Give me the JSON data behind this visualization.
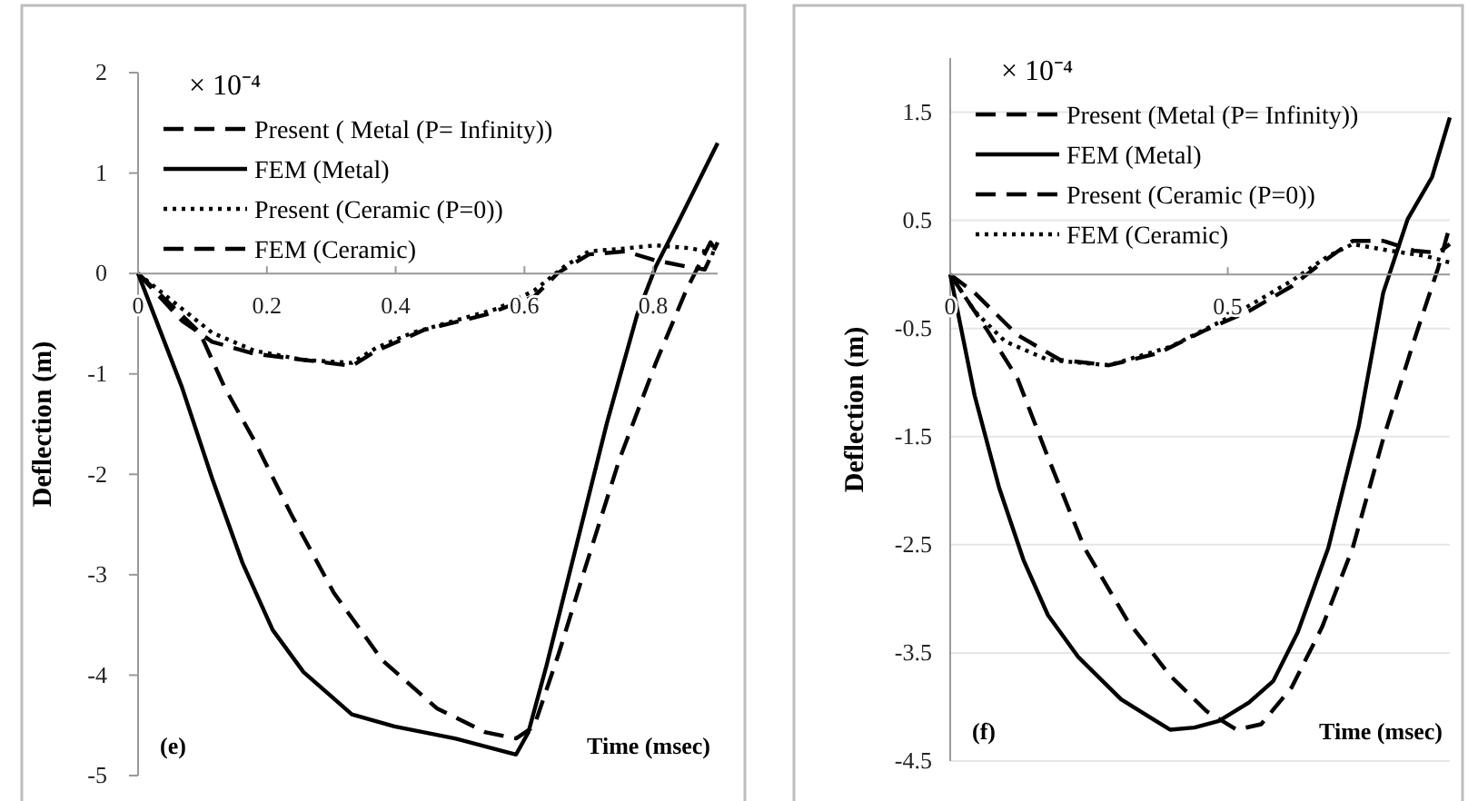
{
  "chart_data": [
    {
      "type": "line",
      "xlabel": "Time (msec)",
      "ylabel": "Deflection (m)",
      "annotations": [
        "× 10⁻⁴",
        "(e)"
      ],
      "xlim": [
        0,
        0.9
      ],
      "xticks": [
        0,
        0.2,
        0.4,
        0.6,
        0.8
      ],
      "ylim": [
        -5,
        2
      ],
      "yticks": [
        -5,
        -4,
        -3,
        -2,
        -1,
        0,
        1,
        2
      ],
      "grid": false,
      "legend": "top",
      "marker": "none",
      "series": [
        {
          "name": "Present ( Metal (P= Infinity))",
          "color": "#000000",
          "line_style": "dashed",
          "x": [
            0,
            0.096,
            0.134,
            0.181,
            0.238,
            0.304,
            0.379,
            0.464,
            0.54,
            0.587,
            0.615,
            0.653,
            0.691,
            0.747,
            0.804,
            0.851,
            0.889,
            0.9
          ],
          "values": [
            0,
            -0.59,
            -1.13,
            -1.67,
            -2.4,
            -3.18,
            -3.85,
            -4.33,
            -4.57,
            -4.63,
            -4.51,
            -3.79,
            -3.0,
            -1.86,
            -0.89,
            -0.17,
            0.31,
            0.2
          ]
        },
        {
          "name": "FEM (Metal)",
          "color": "#000000",
          "line_style": "solid",
          "x": [
            0,
            0.068,
            0.115,
            0.162,
            0.209,
            0.257,
            0.332,
            0.398,
            0.492,
            0.568,
            0.587,
            0.606,
            0.634,
            0.681,
            0.728,
            0.775,
            0.804,
            0.842,
            0.9
          ],
          "values": [
            0,
            -1.13,
            -2.04,
            -2.88,
            -3.55,
            -3.97,
            -4.39,
            -4.51,
            -4.63,
            -4.76,
            -4.79,
            -4.57,
            -3.91,
            -2.7,
            -1.49,
            -0.41,
            0.07,
            0.55,
            1.3
          ]
        },
        {
          "name": "Present (Ceramic  (P=0))",
          "color": "#000000",
          "line_style": "dotted",
          "x": [
            0,
            0.068,
            0.115,
            0.181,
            0.257,
            0.332,
            0.37,
            0.426,
            0.492,
            0.558,
            0.615,
            0.662,
            0.7,
            0.757,
            0.804,
            0.86,
            0.9
          ],
          "values": [
            0,
            -0.35,
            -0.59,
            -0.77,
            -0.86,
            -0.89,
            -0.74,
            -0.59,
            -0.47,
            -0.35,
            -0.17,
            0.07,
            0.22,
            0.25,
            0.28,
            0.25,
            0.19
          ]
        },
        {
          "name": "FEM (Ceramic)",
          "color": "#000000",
          "line_style": "dashed",
          "x": [
            0,
            0.068,
            0.115,
            0.181,
            0.257,
            0.332,
            0.37,
            0.445,
            0.54,
            0.615,
            0.653,
            0.7,
            0.757,
            0.804,
            0.851,
            0.88,
            0.9
          ],
          "values": [
            0,
            -0.47,
            -0.68,
            -0.8,
            -0.86,
            -0.92,
            -0.77,
            -0.56,
            -0.41,
            -0.23,
            0.01,
            0.19,
            0.22,
            0.13,
            0.07,
            0.04,
            0.31
          ]
        }
      ]
    },
    {
      "type": "line",
      "xlabel": "Time (msec)",
      "ylabel": "Deflection (m)",
      "annotations": [
        "× 10⁻⁴",
        "(f)"
      ],
      "xlim": [
        0,
        0.9
      ],
      "xticks": [
        0,
        0.5
      ],
      "ylim": [
        -4.5,
        2
      ],
      "yticks": [
        -4.5,
        -3.5,
        -2.5,
        -1.5,
        -0.5,
        0.5,
        1.5
      ],
      "grid": "y",
      "legend": "top",
      "marker": "none",
      "series": [
        {
          "name": "Present (Metal  (P= Infinity))",
          "color": "#000000",
          "line_style": "dashed",
          "x": [
            0,
            0.066,
            0.121,
            0.176,
            0.242,
            0.319,
            0.396,
            0.462,
            0.516,
            0.56,
            0.615,
            0.67,
            0.725,
            0.78,
            0.835,
            0.879,
            0.9
          ],
          "values": [
            0,
            -0.51,
            -0.96,
            -1.69,
            -2.53,
            -3.2,
            -3.71,
            -4.04,
            -4.21,
            -4.16,
            -3.82,
            -3.26,
            -2.53,
            -1.52,
            -0.62,
            0.06,
            0.45
          ]
        },
        {
          "name": "FEM (Metal)",
          "color": "#000000",
          "line_style": "solid",
          "x": [
            0,
            0.044,
            0.088,
            0.132,
            0.176,
            0.231,
            0.308,
            0.396,
            0.44,
            0.484,
            0.538,
            0.582,
            0.626,
            0.681,
            0.736,
            0.78,
            0.824,
            0.868,
            0.9
          ],
          "values": [
            0,
            -1.12,
            -1.97,
            -2.64,
            -3.15,
            -3.54,
            -3.93,
            -4.21,
            -4.19,
            -4.13,
            -3.96,
            -3.76,
            -3.31,
            -2.53,
            -1.4,
            -0.17,
            0.51,
            0.9,
            1.45
          ]
        },
        {
          "name": "Present (Ceramic  (P=0))",
          "color": "#000000",
          "line_style": "dashed",
          "x": [
            0,
            0.044,
            0.121,
            0.198,
            0.286,
            0.374,
            0.462,
            0.538,
            0.615,
            0.67,
            0.725,
            0.78,
            0.835,
            0.879,
            0.9
          ],
          "values": [
            0,
            -0.17,
            -0.56,
            -0.79,
            -0.84,
            -0.73,
            -0.51,
            -0.34,
            -0.11,
            0.11,
            0.31,
            0.31,
            0.22,
            0.2,
            0.28
          ]
        },
        {
          "name": "FEM (Ceramic)",
          "color": "#000000",
          "line_style": "dotted",
          "x": [
            0,
            0.044,
            0.099,
            0.176,
            0.286,
            0.396,
            0.505,
            0.615,
            0.681,
            0.725,
            0.791,
            0.857,
            0.9
          ],
          "values": [
            0,
            -0.34,
            -0.62,
            -0.79,
            -0.84,
            -0.67,
            -0.39,
            -0.06,
            0.17,
            0.28,
            0.22,
            0.17,
            0.11
          ]
        }
      ]
    }
  ]
}
